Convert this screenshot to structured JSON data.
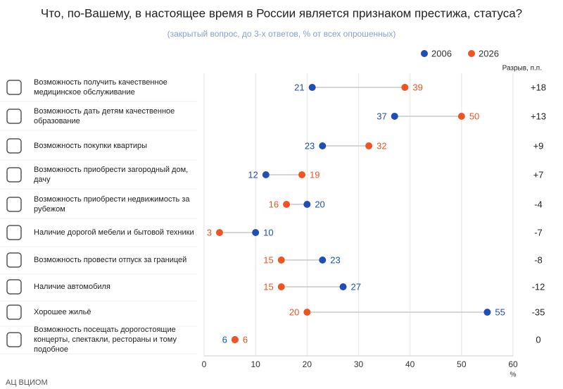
{
  "chart_data": {
    "type": "dumbbell",
    "title": "Что, по-Вашему, в настоящее время в России является признаком престижа, статуса?",
    "subtitle": "(закрытый вопрос, до 3-х ответов, % от всех опрошенных)",
    "categories": [
      "Возможность получить качественное медицинское обслуживание",
      "Возможность дать детям качественное образование",
      "Возможность покупки квартиры",
      "Возможность приобрести загородный дом, дачу",
      "Возможность приобрести недвижимость за рубежом",
      "Наличие дорогой мебели и бытовой техники",
      "Возможность провести отпуск за границей",
      "Наличие автомобиля",
      "Хорошее жильё",
      "Возможность посещать дорогостоящие концерты, спектакли, рестораны и тому подобное"
    ],
    "series": [
      {
        "name": "2006",
        "color": "#1f4fb5",
        "values": [
          21,
          37,
          23,
          12,
          20,
          10,
          23,
          27,
          55,
          6
        ]
      },
      {
        "name": "2026",
        "color": "#f05423",
        "values": [
          39,
          50,
          32,
          19,
          16,
          3,
          15,
          15,
          20,
          6
        ]
      }
    ],
    "gap": {
      "title": "Разрыв, п.п.",
      "values": [
        18,
        13,
        9,
        7,
        -4,
        -7,
        -8,
        -12,
        -35,
        0
      ],
      "value_labels": [
        "+18",
        "+13",
        "+9",
        "+7",
        "-4",
        "-7",
        "-8",
        "-12",
        "-35",
        "0"
      ]
    },
    "xlim": [
      0,
      60
    ],
    "xticks": [
      0,
      10,
      20,
      30,
      40,
      50,
      60
    ],
    "xlabel": "%",
    "grid": true,
    "source": "АЦ ВЦИОМ"
  }
}
